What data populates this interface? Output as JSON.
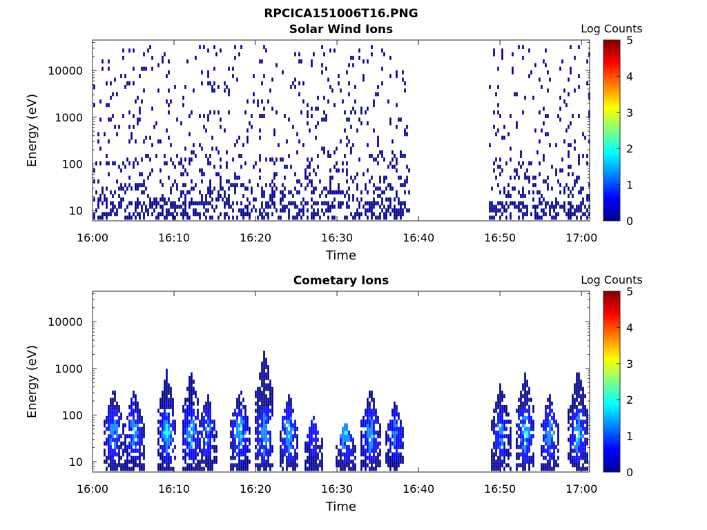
{
  "figure_title": "RPCICA151006T16.PNG",
  "colormap": [
    "#00008f",
    "#0000ff",
    "#0080ff",
    "#00ffff",
    "#80ff80",
    "#ffff00",
    "#ff8000",
    "#ff0000",
    "#800000"
  ],
  "chart_data": [
    {
      "type": "heatmap",
      "title": "Solar Wind Ions",
      "xlabel": "Time",
      "ylabel": "Energy (eV)",
      "x_range": [
        "16:00",
        "17:01"
      ],
      "xticks": [
        "16:00",
        "16:10",
        "16:20",
        "16:30",
        "16:40",
        "16:50",
        "17:00"
      ],
      "y_scale": "log",
      "y_range": [
        6,
        45000
      ],
      "yticks": [
        "10",
        "100",
        "1000",
        "10000"
      ],
      "colorbar": {
        "label": "Log Counts",
        "range": [
          0,
          5
        ],
        "ticks": [
          "0",
          "1",
          "2",
          "3",
          "4",
          "5"
        ]
      },
      "data_gaps": [
        [
          "16:38:45",
          "16:48:30"
        ]
      ],
      "dominant_log_counts": 0,
      "description": "Sparse single-count pixels across 10 eV - 30 keV; denser below 100 eV"
    },
    {
      "type": "heatmap",
      "title": "Cometary Ions",
      "xlabel": "Time",
      "ylabel": "Energy (eV)",
      "x_range": [
        "16:00",
        "17:01"
      ],
      "xticks": [
        "16:00",
        "16:10",
        "16:20",
        "16:30",
        "16:40",
        "16:50",
        "17:00"
      ],
      "y_scale": "log",
      "y_range": [
        6,
        45000
      ],
      "yticks": [
        "10",
        "100",
        "1000",
        "10000"
      ],
      "colorbar": {
        "label": "Log Counts",
        "range": [
          0,
          5
        ],
        "ticks": [
          "0",
          "1",
          "2",
          "3",
          "4",
          "5"
        ]
      },
      "data_gaps": [
        [
          "16:38:45",
          "16:48:30"
        ]
      ],
      "bursts": [
        {
          "time": "16:02:30",
          "max_energy_eV": 400,
          "peak_log_counts": 1.5
        },
        {
          "time": "16:05:00",
          "max_energy_eV": 400,
          "peak_log_counts": 1.6
        },
        {
          "time": "16:09:00",
          "max_energy_eV": 900,
          "peak_log_counts": 1.8
        },
        {
          "time": "16:12:00",
          "max_energy_eV": 900,
          "peak_log_counts": 1.7
        },
        {
          "time": "16:14:00",
          "max_energy_eV": 300,
          "peak_log_counts": 1.3
        },
        {
          "time": "16:18:00",
          "max_energy_eV": 400,
          "peak_log_counts": 1.8
        },
        {
          "time": "16:21:00",
          "max_energy_eV": 2600,
          "peak_log_counts": 1.9
        },
        {
          "time": "16:24:00",
          "max_energy_eV": 300,
          "peak_log_counts": 1.7
        },
        {
          "time": "16:27:00",
          "max_energy_eV": 100,
          "peak_log_counts": 1.0
        },
        {
          "time": "16:31:00",
          "max_energy_eV": 80,
          "peak_log_counts": 1.8
        },
        {
          "time": "16:34:00",
          "max_energy_eV": 400,
          "peak_log_counts": 1.8
        },
        {
          "time": "16:37:00",
          "max_energy_eV": 200,
          "peak_log_counts": 1.2
        },
        {
          "time": "16:50:00",
          "max_energy_eV": 500,
          "peak_log_counts": 1.3
        },
        {
          "time": "16:53:00",
          "max_energy_eV": 800,
          "peak_log_counts": 1.8
        },
        {
          "time": "16:56:00",
          "max_energy_eV": 300,
          "peak_log_counts": 1.5
        },
        {
          "time": "16:59:30",
          "max_energy_eV": 1100,
          "peak_log_counts": 1.9
        }
      ]
    }
  ]
}
